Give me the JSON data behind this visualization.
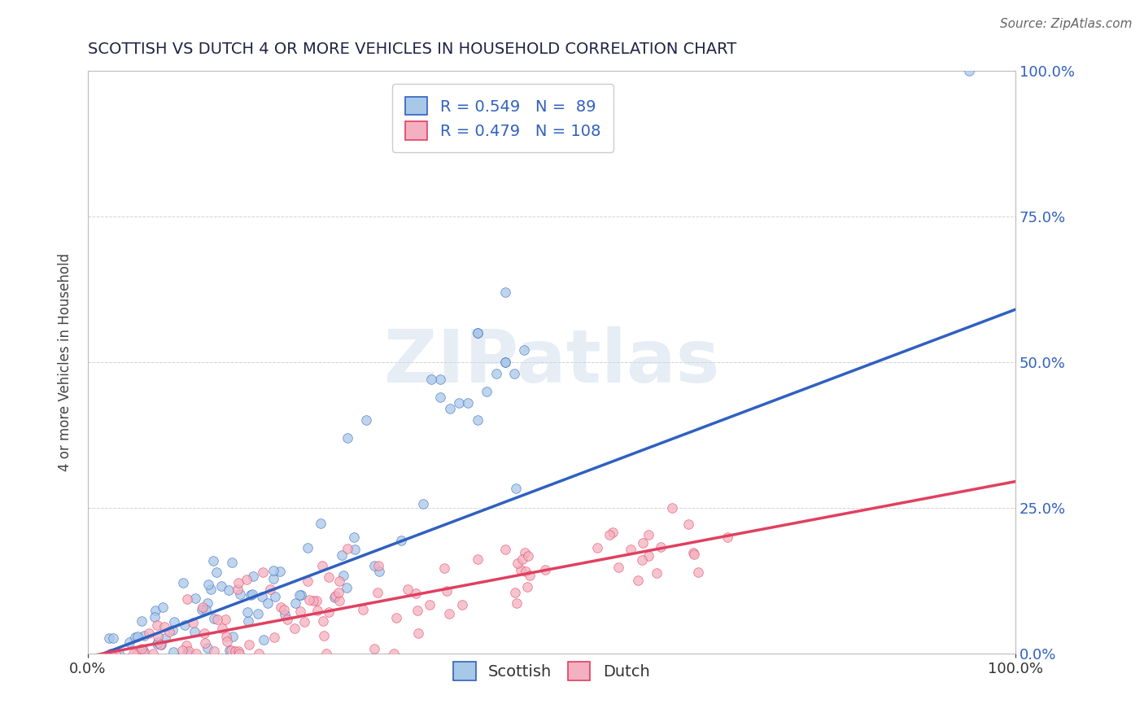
{
  "title": "SCOTTISH VS DUTCH 4 OR MORE VEHICLES IN HOUSEHOLD CORRELATION CHART",
  "source": "Source: ZipAtlas.com",
  "ylabel": "4 or more Vehicles in Household",
  "watermark": "ZIPatlas",
  "scottish_R": 0.549,
  "scottish_N": 89,
  "dutch_R": 0.479,
  "dutch_N": 108,
  "scottish_color": "#a8c8e8",
  "dutch_color": "#f4b0c0",
  "scottish_line_color": "#3060c0",
  "dutch_line_color": "#e04060",
  "background_color": "#ffffff",
  "grid_color": "#c8c8c8",
  "legend_text_color": "#3060c0",
  "title_color": "#222244",
  "scottish_line_slope": 0.6,
  "scottish_line_intercept": -0.01,
  "dutch_line_slope": 0.3,
  "dutch_line_intercept": -0.005
}
